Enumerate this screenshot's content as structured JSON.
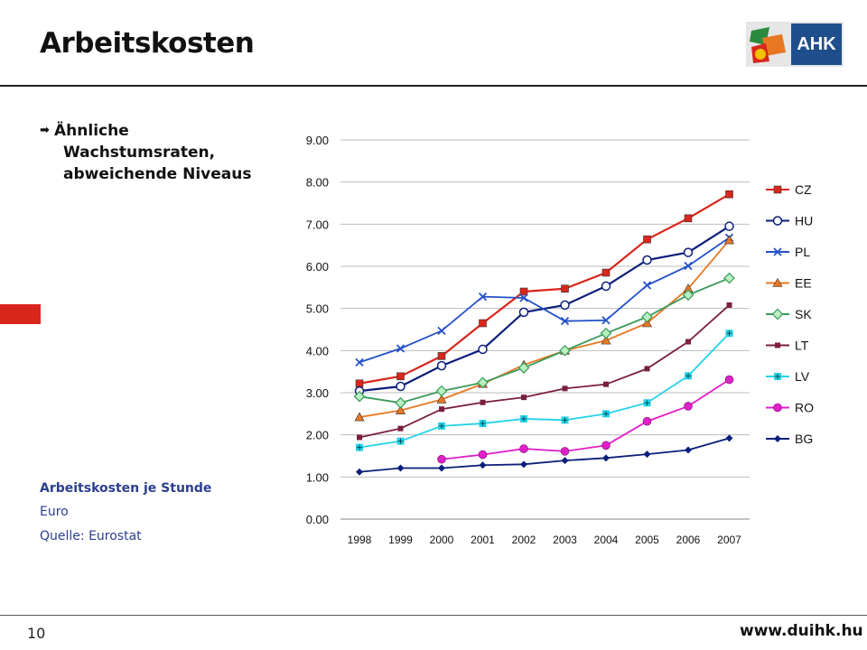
{
  "page": {
    "title": "Arbeitskosten",
    "logo_text": "AHK",
    "bullet": [
      "Ähnliche",
      "Wachstumsraten,",
      "abweichende Niveaus"
    ],
    "caption_title": "Arbeitskosten je Stunde",
    "caption_unit": "Euro",
    "caption_source": "Quelle: Eurostat",
    "page_number": "10",
    "website": "www.duihk.hu"
  },
  "chart_data": {
    "type": "line",
    "title": "",
    "xlabel": "",
    "ylabel": "",
    "ylim": [
      0,
      9
    ],
    "yticks": [
      "0.00",
      "1.00",
      "2.00",
      "3.00",
      "4.00",
      "5.00",
      "6.00",
      "7.00",
      "8.00",
      "9.00"
    ],
    "categories": [
      "1998",
      "1999",
      "2000",
      "2001",
      "2002",
      "2003",
      "2004",
      "2005",
      "2006",
      "2007"
    ],
    "grid": true,
    "legend_position": "right",
    "series": [
      {
        "name": "CZ",
        "color": "#d9261c",
        "marker": "square",
        "values": [
          3.22,
          3.39,
          3.87,
          4.65,
          5.4,
          5.47,
          5.85,
          6.64,
          7.14,
          7.71
        ]
      },
      {
        "name": "HU",
        "color": "#0b1f7a",
        "marker": "circle-open",
        "values": [
          3.04,
          3.15,
          3.64,
          4.03,
          4.91,
          5.08,
          5.53,
          6.15,
          6.33,
          6.95
        ]
      },
      {
        "name": "PL",
        "color": "#2450c8",
        "marker": "x",
        "values": [
          3.72,
          4.05,
          4.47,
          5.28,
          5.25,
          4.7,
          4.72,
          5.55,
          6.01,
          6.68
        ]
      },
      {
        "name": "EE",
        "color": "#e87722",
        "marker": "triangle",
        "values": [
          2.42,
          2.58,
          2.84,
          3.21,
          3.66,
          4.0,
          4.24,
          4.65,
          5.47,
          6.62
        ]
      },
      {
        "name": "SK",
        "color": "#3a9a5a",
        "marker": "diamond",
        "values": [
          2.91,
          2.76,
          3.04,
          3.24,
          3.59,
          4.0,
          4.41,
          4.8,
          5.32,
          5.72
        ]
      },
      {
        "name": "LT",
        "color": "#7a1f3d",
        "marker": "square-small",
        "values": [
          1.94,
          2.15,
          2.61,
          2.77,
          2.89,
          3.1,
          3.2,
          3.57,
          4.21,
          5.08
        ]
      },
      {
        "name": "LV",
        "color": "#22d3e8",
        "marker": "plus",
        "values": [
          1.7,
          1.85,
          2.21,
          2.27,
          2.38,
          2.35,
          2.5,
          2.76,
          3.4,
          4.41
        ]
      },
      {
        "name": "RO",
        "color": "#e020c8",
        "marker": "circle-filled",
        "values": [
          null,
          null,
          1.42,
          1.53,
          1.67,
          1.61,
          1.75,
          2.32,
          2.68,
          3.31
        ]
      },
      {
        "name": "BG",
        "color": "#0b1f7a",
        "marker": "diamond-small",
        "values": [
          1.12,
          1.21,
          1.21,
          1.28,
          1.3,
          1.39,
          1.45,
          1.54,
          1.64,
          1.92
        ]
      }
    ]
  }
}
